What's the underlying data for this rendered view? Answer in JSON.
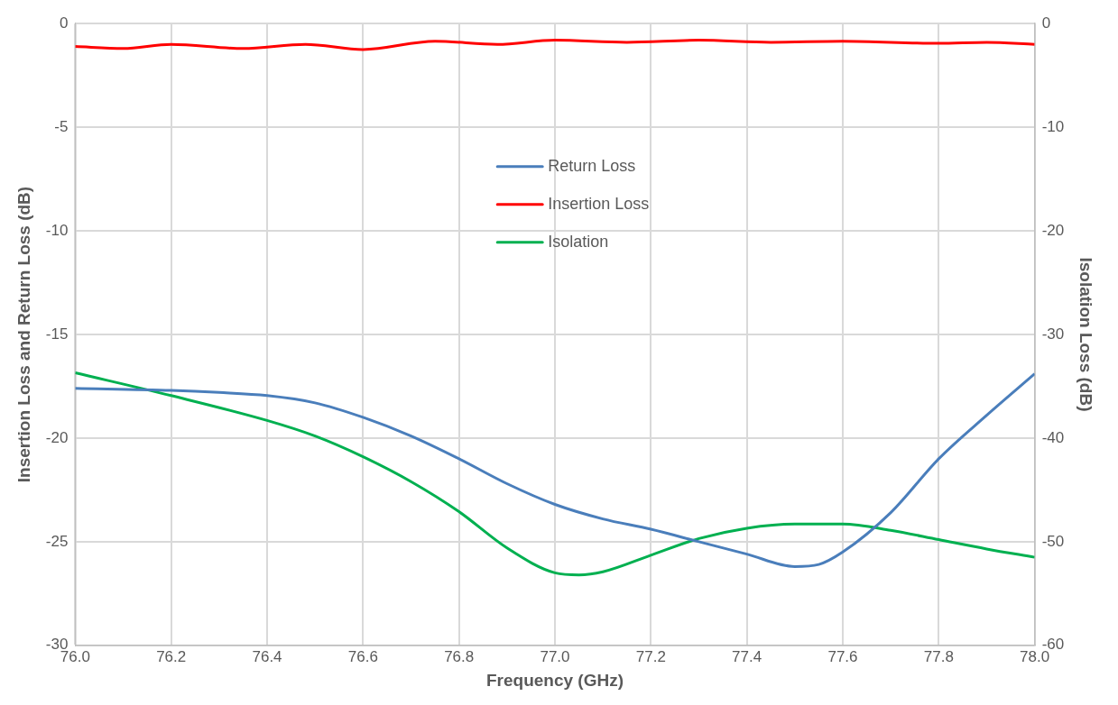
{
  "chart_data": {
    "type": "line",
    "xlabel": "Frequency (GHz)",
    "ylabel": "Insertion Loss and Return Loss (dB)",
    "y2label": "Isolation Loss (dB)",
    "xlim": [
      76.0,
      78.0
    ],
    "xticks": [
      {
        "value": 76.0,
        "label": "76.0"
      },
      {
        "value": 76.2,
        "label": "76.2"
      },
      {
        "value": 76.4,
        "label": "76.4"
      },
      {
        "value": 76.6,
        "label": "76.6"
      },
      {
        "value": 76.8,
        "label": "76.8"
      },
      {
        "value": 77.0,
        "label": "77.0"
      },
      {
        "value": 77.2,
        "label": "77.2"
      },
      {
        "value": 77.4,
        "label": "77.4"
      },
      {
        "value": 77.6,
        "label": "77.6"
      },
      {
        "value": 77.8,
        "label": "77.8"
      },
      {
        "value": 78.0,
        "label": "78.0"
      }
    ],
    "ylim": [
      -30,
      0
    ],
    "yticks": [
      -30,
      -25,
      -20,
      -15,
      -10,
      -5,
      0
    ],
    "y2lim": [
      -60,
      0
    ],
    "y2ticks": [
      -60,
      -50,
      -40,
      -30,
      -20,
      -10,
      0
    ],
    "grid": true,
    "legend": "top",
    "marker": "none",
    "line_style": "solid",
    "series": [
      {
        "name": "Return Loss",
        "color": "#4a7ebb",
        "x": [
          76.0,
          76.2,
          76.3,
          76.4,
          76.5,
          76.6,
          76.7,
          76.8,
          76.9,
          77.0,
          77.1,
          77.2,
          77.3,
          77.4,
          77.5,
          77.55,
          77.6,
          77.7,
          77.8,
          77.9,
          78.0
        ],
        "values": [
          -17.6,
          -17.7,
          -17.8,
          -17.95,
          -18.3,
          -19.0,
          -19.9,
          -21.0,
          -22.2,
          -23.2,
          -23.9,
          -24.4,
          -25.0,
          -25.6,
          -26.2,
          -26.1,
          -25.5,
          -23.6,
          -21.0,
          -18.9,
          -16.9
        ]
      },
      {
        "name": "Insertion Loss",
        "color": "#ff0000",
        "x": [
          76.0,
          76.1,
          76.2,
          76.35,
          76.48,
          76.6,
          76.75,
          76.88,
          77.0,
          77.15,
          77.3,
          77.45,
          77.6,
          77.8,
          77.9,
          78.0
        ],
        "values": [
          -1.1,
          -1.2,
          -1.0,
          -1.2,
          -1.0,
          -1.25,
          -0.85,
          -1.0,
          -0.8,
          -0.9,
          -0.8,
          -0.9,
          -0.85,
          -0.95,
          -0.9,
          -1.0
        ]
      },
      {
        "name": "Isolation",
        "color": "#00b050",
        "axis": "y2",
        "x": [
          76.0,
          76.2,
          76.4,
          76.5,
          76.6,
          76.7,
          76.8,
          76.9,
          77.0,
          77.05,
          77.1,
          77.2,
          77.3,
          77.4,
          77.5,
          77.6,
          77.7,
          77.8,
          77.9,
          78.0
        ],
        "values": [
          -33.7,
          -35.9,
          -38.3,
          -39.8,
          -41.8,
          -44.2,
          -47.1,
          -50.6,
          -53.0,
          -53.2,
          -52.9,
          -51.3,
          -49.7,
          -48.7,
          -48.3,
          -48.3,
          -48.9,
          -49.8,
          -50.7,
          -51.5
        ]
      }
    ]
  }
}
